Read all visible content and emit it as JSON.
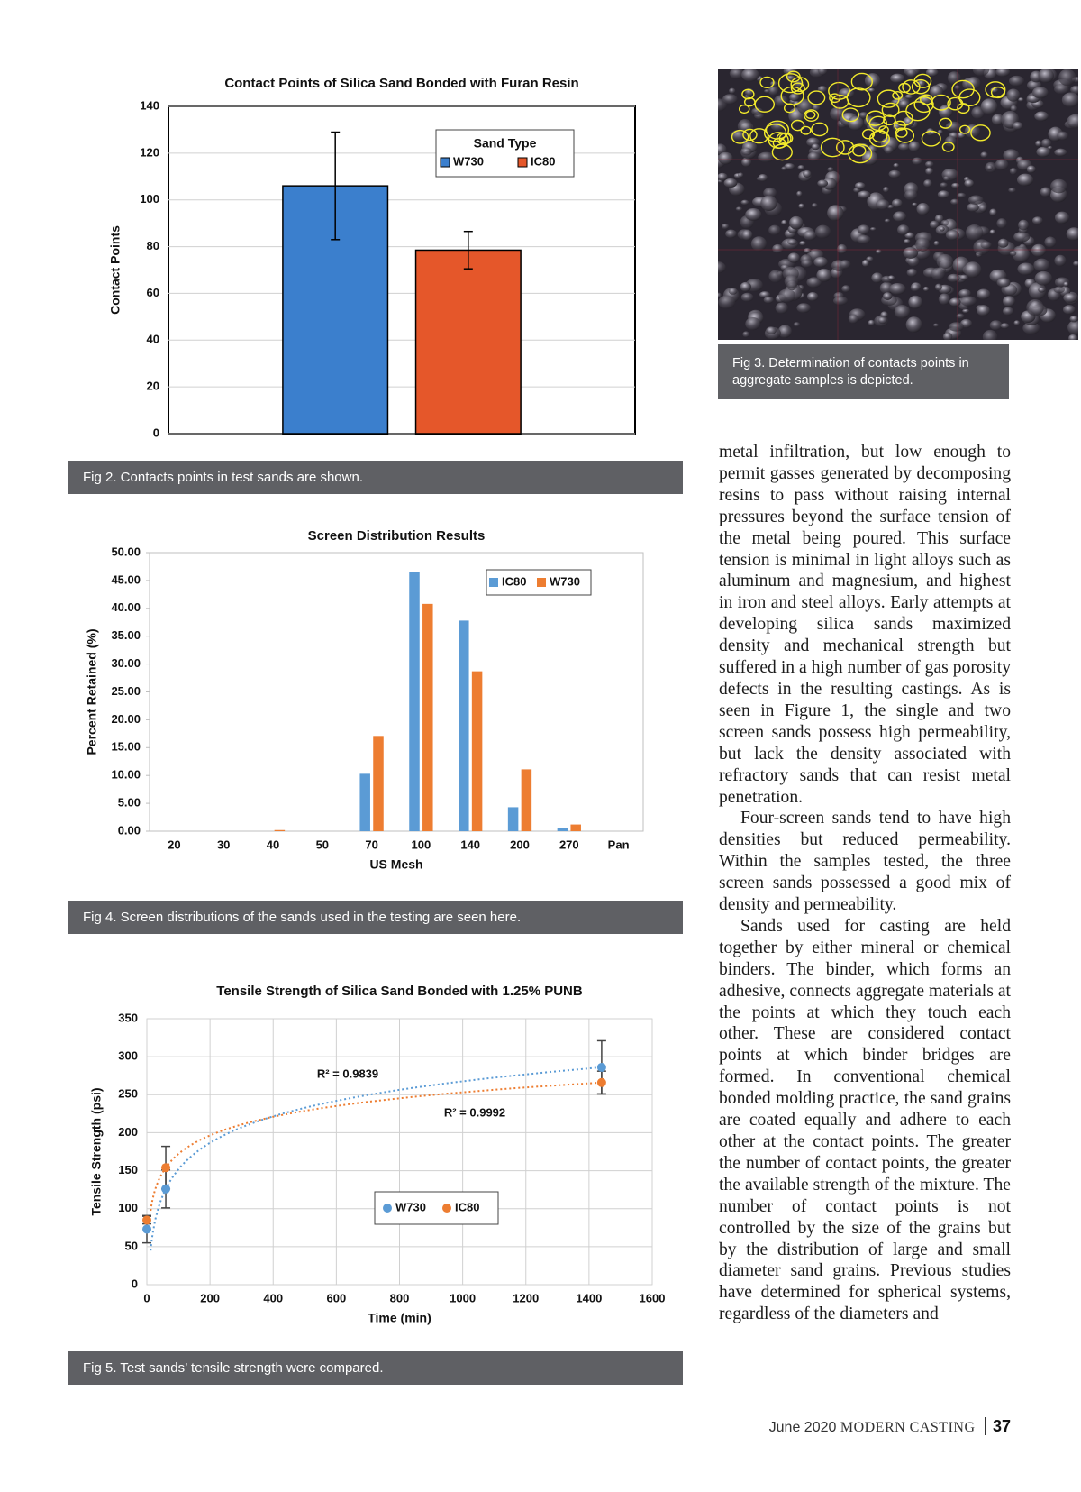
{
  "chart_data": [
    {
      "type": "bar",
      "title": "Contact Points of Silica Sand Bonded with Furan Resin",
      "ylabel": "Contact Points",
      "categories": [
        null
      ],
      "series": [
        {
          "name": "W730",
          "color": "#3b7fcd",
          "values": [
            106
          ],
          "errors": [
            23
          ]
        },
        {
          "name": "IC80",
          "color": "#e5572a",
          "values": [
            78.5
          ],
          "errors": [
            8
          ]
        }
      ],
      "bar_edgecolor": "#000000",
      "legend": "upper right",
      "legend_title": "Sand Type",
      "ylim": [
        0,
        140
      ],
      "yticks": [
        0,
        20,
        40,
        60,
        80,
        100,
        120,
        140
      ],
      "grid": true
    },
    {
      "type": "bar",
      "title": "Screen Distribution Results",
      "xlabel": "US Mesh",
      "ylabel": "Percent Retained (%)",
      "categories": [
        "20",
        "30",
        "40",
        "50",
        "70",
        "100",
        "140",
        "200",
        "270",
        "Pan"
      ],
      "series": [
        {
          "name": "IC80",
          "color": "#5b9bd5",
          "values": [
            0,
            0,
            0,
            0,
            10.3,
            46.5,
            37.8,
            4.3,
            0.5,
            0
          ]
        },
        {
          "name": "W730",
          "color": "#ed7d31",
          "values": [
            0,
            0,
            0.2,
            0,
            17.1,
            40.8,
            28.7,
            11.1,
            1.2,
            0
          ]
        }
      ],
      "legend": "upper right",
      "ylim": [
        0,
        50
      ],
      "yticks": [
        {
          "value": 0,
          "label": "0.00"
        },
        {
          "value": 5,
          "label": "5.00"
        },
        {
          "value": 10,
          "label": "10.00"
        },
        {
          "value": 15,
          "label": "15.00"
        },
        {
          "value": 20,
          "label": "20.00"
        },
        {
          "value": 25,
          "label": "25.00"
        },
        {
          "value": 30,
          "label": "30.00"
        },
        {
          "value": 35,
          "label": "35.00"
        },
        {
          "value": 40,
          "label": "40.00"
        },
        {
          "value": 45,
          "label": "45.00"
        },
        {
          "value": 50,
          "label": "50.00"
        }
      ],
      "grid": false
    },
    {
      "type": "scatter",
      "title": "Tensile Strength of Silica Sand Bonded with 1.25% PUNB",
      "xlabel": "Time (min)",
      "ylabel": "Tensile Strength (psi)",
      "series": [
        {
          "name": "W730",
          "color": "#5b9bd5",
          "x": [
            0,
            60,
            1440
          ],
          "values": [
            73,
            126,
            286
          ],
          "errors": [
            18,
            25,
            35
          ]
        },
        {
          "name": "IC80",
          "color": "#ed7d31",
          "x": [
            0,
            60,
            1440
          ],
          "values": [
            85,
            154,
            266
          ],
          "errors": [
            5,
            28,
            15
          ]
        }
      ],
      "trendline": "logarithmic",
      "annotations": [
        "R² = 0.9839",
        "R² = 0.9992"
      ],
      "legend": "center",
      "xlim": [
        0,
        1600
      ],
      "xticks": [
        0,
        200,
        400,
        600,
        800,
        1000,
        1200,
        1400,
        1600
      ],
      "ylim": [
        0,
        350
      ],
      "yticks": [
        0,
        50,
        100,
        150,
        200,
        250,
        300,
        350
      ],
      "grid": true
    }
  ],
  "captions": [
    "Fig 2. Contacts points in test sands are shown.",
    "Fig 3. Determination of contacts points in aggregate samples is depicted.",
    "Fig 4. Screen distributions of the sands used in the testing are seen here.",
    "Fig 5. Test sands’ tensile strength were compared."
  ],
  "article": {
    "paragraphs": [
      "metal infiltration, but low enough to permit gasses generated by decomposing resins to pass without raising internal pressures beyond the surface tension of the metal being poured. This surface tension is minimal in light alloys such as aluminum and magnesium, and highest in iron and steel alloys. Early attempts at developing silica sands maximized density and mechanical strength but suffered in a high number of gas porosity defects in the resulting castings. As is seen in Figure 1, the single and two screen sands possess high permeability, but lack the density associated with refractory sands that can resist metal penetration.",
      "Four-screen sands tend to have high densities but reduced permeability. Within the samples tested, the three screen sands possessed a good mix of density and permeability.",
      "Sands used for casting are held together by either mineral or chemical binders. The binder, which forms an adhesive, connects aggregate materials at the points at which they touch each other. These are considered contact points at which binder bridges are formed. In conventional chemical bonded molding practice, the sand grains are coated equally and adhere to each other at the contact points. The greater the number of contact points, the greater the available strength of the mixture. The number of contact points is not controlled by the size of the grains but by the distribution of large and small diameter sand grains. Previous studies have determined for spherical systems, regardless of the diameters and"
    ]
  },
  "footer": {
    "date": "June 2020",
    "magazine": "MODERN CASTING",
    "page": 37
  }
}
